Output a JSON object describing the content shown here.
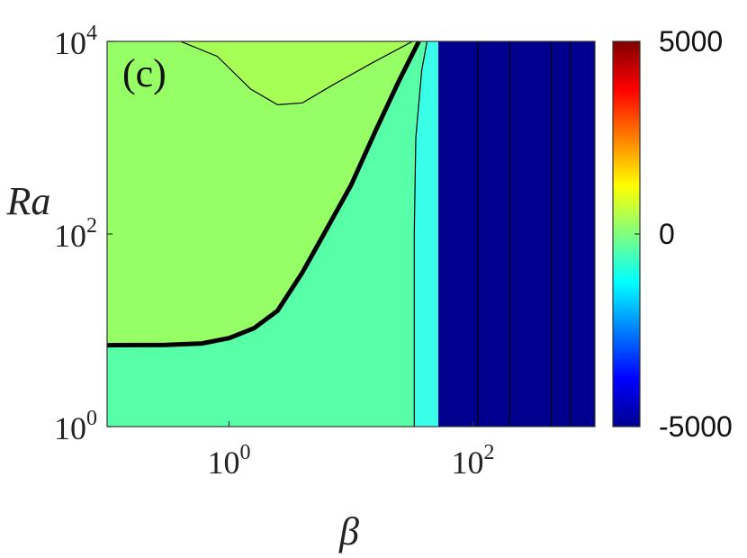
{
  "chart_data": {
    "type": "heatmap",
    "panel_label": "(c)",
    "xlabel": "β",
    "ylabel": "Ra",
    "x_scale": "log",
    "y_scale": "log",
    "xlim": [
      0.1,
      1000
    ],
    "ylim": [
      1,
      10000
    ],
    "x_ticks": [
      {
        "value": 1,
        "base": "10",
        "exp": "0"
      },
      {
        "value": 100,
        "base": "10",
        "exp": "2"
      }
    ],
    "y_ticks": [
      {
        "value": 1,
        "base": "10",
        "exp": "0"
      },
      {
        "value": 100,
        "base": "10",
        "exp": "2"
      },
      {
        "value": 10000,
        "base": "10",
        "exp": "4"
      }
    ],
    "colorbar": {
      "min": -5000,
      "max": 5000,
      "colormap": "jet",
      "tick_labels": [
        {
          "value": 5000,
          "label": "5000"
        },
        {
          "value": 0,
          "label": "0"
        },
        {
          "value": -5000,
          "label": "-5000"
        }
      ]
    },
    "regions": [
      {
        "name": "lower-region",
        "color": "#56ffa8"
      },
      {
        "name": "upper-region",
        "color": "#96ff66"
      },
      {
        "name": "top-lobe",
        "color": "#a6ff55"
      },
      {
        "name": "cyan-band",
        "color": "#3affe8"
      },
      {
        "name": "negative-region",
        "color": "#00008f"
      }
    ],
    "zero_contour": [
      [
        0.1,
        7
      ],
      [
        0.3,
        7.05
      ],
      [
        0.6,
        7.3
      ],
      [
        1.0,
        8.3
      ],
      [
        1.6,
        10.5
      ],
      [
        2.5,
        16
      ],
      [
        4,
        40
      ],
      [
        6,
        100
      ],
      [
        10,
        320
      ],
      [
        16,
        1200
      ],
      [
        25,
        4000
      ],
      [
        36,
        10000
      ]
    ],
    "upper_contour": [
      [
        0.4,
        10000
      ],
      [
        0.8,
        7000
      ],
      [
        1.5,
        3200
      ],
      [
        2.5,
        2200
      ],
      [
        4,
        2300
      ],
      [
        7,
        3500
      ],
      [
        15,
        6000
      ],
      [
        32,
        10000
      ]
    ],
    "cyan_boundary_left": [
      [
        33,
        1
      ],
      [
        33,
        100
      ],
      [
        34,
        1000
      ],
      [
        38,
        5000
      ],
      [
        42,
        10000
      ]
    ],
    "negative_boundary": 52,
    "negative_contour_x": [
      110,
      200,
      440,
      630
    ]
  }
}
